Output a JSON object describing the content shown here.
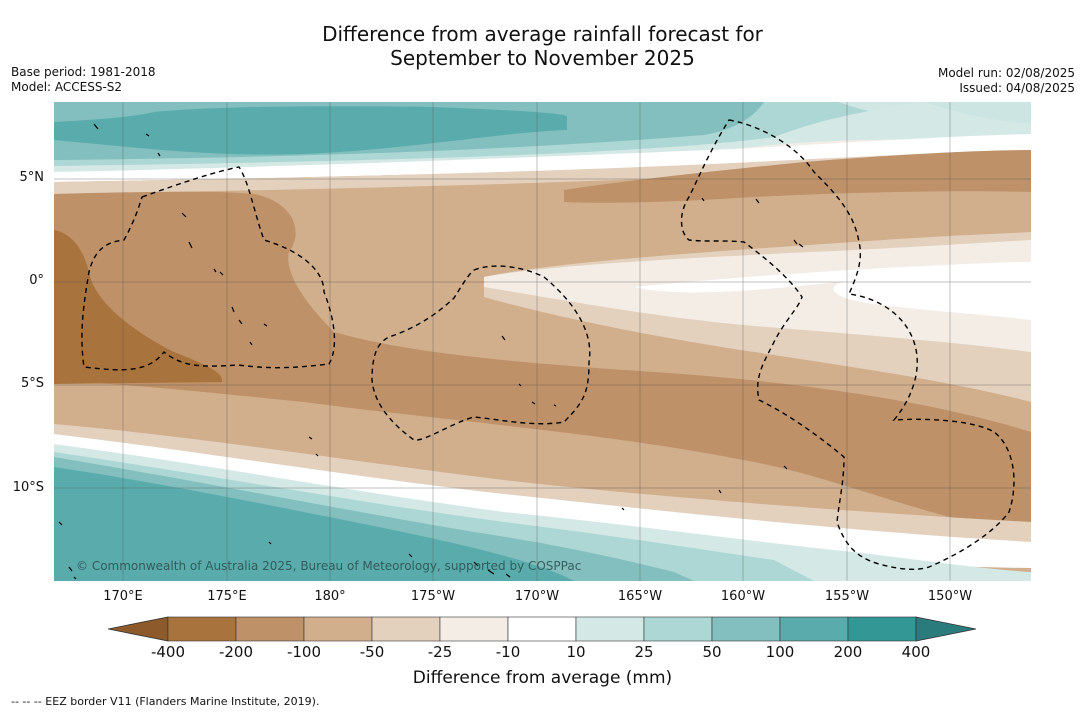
{
  "title": {
    "line1": "Difference from average rainfall forecast for",
    "line2": "September to November 2025"
  },
  "meta_left": {
    "base_period": "Base period: 1981-2018",
    "model": "Model: ACCESS-S2"
  },
  "meta_right": {
    "model_run": "Model run: 02/08/2025",
    "issued": "Issued: 04/08/2025"
  },
  "map": {
    "lat_labels": [
      "5°N",
      "0°",
      "5°S",
      "10°S"
    ],
    "lon_labels": [
      "170°E",
      "175°E",
      "180°",
      "175°W",
      "170°W",
      "165°W",
      "160°W",
      "155°W",
      "150°W"
    ],
    "copyright": "© Commonwealth of Australia 2025, Bureau of Meteorology, supported by COSPPac",
    "colors": {
      "brown_400": "#a9733d",
      "brown_200": "#be9168",
      "brown_100": "#d1ae8c",
      "brown_50": "#e3d0bd",
      "brown_25": "#f3ede6",
      "neutral": "#ffffff",
      "teal_25": "#d4e9e6",
      "teal_50": "#add7d4",
      "teal_100": "#82bfbe",
      "teal_200": "#5aabac",
      "teal_400": "#339795",
      "teal_400_plus": "#2a7b7b"
    }
  },
  "colorbar": {
    "ticks": [
      "-400",
      "-200",
      "-100",
      "-50",
      "-25",
      "-10",
      "10",
      "25",
      "50",
      "100",
      "200",
      "400"
    ],
    "label": "Difference from average (mm)"
  },
  "footer": "--  --  -- EEZ border V11 (Flanders Marine Institute, 2019)."
}
